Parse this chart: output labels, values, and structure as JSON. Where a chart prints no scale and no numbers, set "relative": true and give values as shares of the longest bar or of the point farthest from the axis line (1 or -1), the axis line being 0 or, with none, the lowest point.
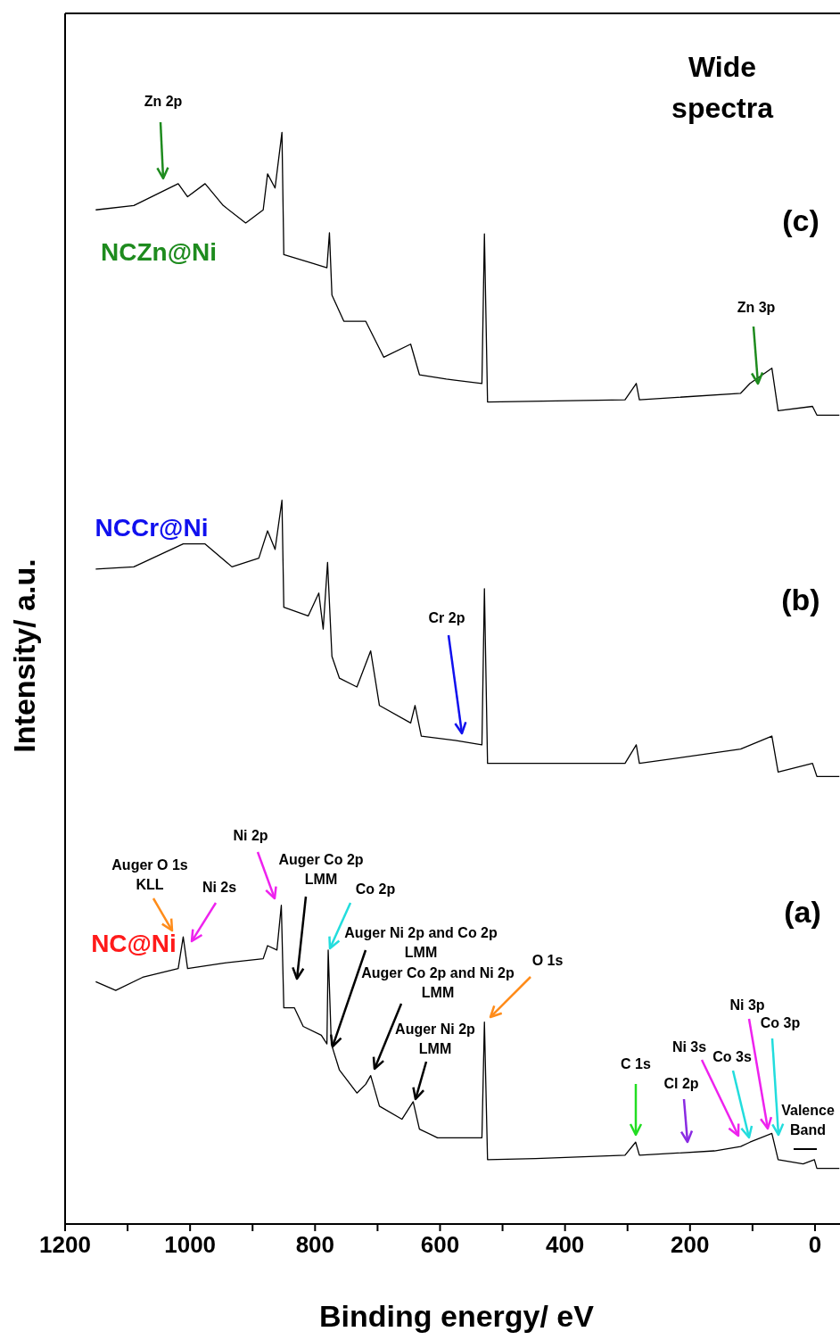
{
  "chart_data": {
    "type": "line",
    "title": "Wide spectra",
    "xlabel": "Binding energy/ eV",
    "ylabel": "Intensity/ a.u.",
    "relative": true,
    "xlim": [
      1200,
      -40
    ],
    "xticks": [
      1200,
      {
        "value": 1100,
        "label": null
      },
      1000,
      {
        "value": 900,
        "label": null
      },
      800,
      {
        "value": 700,
        "label": null
      },
      600,
      {
        "value": 500,
        "label": null
      },
      400,
      {
        "value": 300,
        "label": null
      },
      200,
      {
        "value": 100,
        "label": null
      },
      0
    ],
    "series": [
      {
        "name": "NCZn@Ni",
        "color": "#000000",
        "x": [
          1151,
          1090,
          1019,
          1004,
          976,
          947,
          911,
          883,
          876,
          864,
          853,
          850,
          804,
          781,
          777,
          773,
          754,
          719,
          690,
          647,
          633,
          590,
          533,
          529,
          524,
          304,
          286,
          281,
          119,
          104,
          69,
          59,
          4,
          -3,
          -39
        ],
        "values": [
          0.929,
          0.933,
          0.953,
          0.941,
          0.953,
          0.933,
          0.917,
          0.929,
          0.962,
          0.949,
          1.0,
          0.888,
          0.88,
          0.876,
          0.908,
          0.851,
          0.827,
          0.827,
          0.794,
          0.806,
          0.778,
          0.774,
          0.77,
          0.907,
          0.753,
          0.755,
          0.77,
          0.755,
          0.761,
          0.77,
          0.784,
          0.745,
          0.749,
          0.741,
          0.741
        ]
      },
      {
        "name": "NCCr@Ni",
        "color": "#000000",
        "x": [
          1151,
          1090,
          1011,
          976,
          933,
          890,
          876,
          864,
          853,
          850,
          811,
          794,
          787,
          780,
          773,
          761,
          733,
          711,
          697,
          647,
          640,
          630,
          576,
          533,
          529,
          524,
          304,
          286,
          281,
          119,
          69,
          59,
          4,
          -3,
          -39
        ],
        "values": [
          0.6,
          0.602,
          0.623,
          0.623,
          0.602,
          0.61,
          0.635,
          0.618,
          0.663,
          0.565,
          0.557,
          0.578,
          0.545,
          0.606,
          0.52,
          0.5,
          0.492,
          0.525,
          0.475,
          0.459,
          0.475,
          0.447,
          0.443,
          0.439,
          0.582,
          0.422,
          0.422,
          0.439,
          0.422,
          0.435,
          0.447,
          0.414,
          0.422,
          0.41,
          0.41
        ]
      },
      {
        "name": "NC@Ni",
        "color": "#000000",
        "x": [
          1151,
          1119,
          1076,
          1019,
          1011,
          1004,
          947,
          883,
          876,
          861,
          854,
          850,
          833,
          819,
          790,
          781,
          779,
          774,
          761,
          733,
          719,
          711,
          697,
          661,
          643,
          633,
          604,
          533,
          529,
          524,
          447,
          304,
          287,
          281,
          161,
          119,
          104,
          69,
          59,
          19,
          1,
          -3,
          -39
        ],
        "values": [
          0.222,
          0.214,
          0.226,
          0.234,
          0.263,
          0.234,
          0.239,
          0.243,
          0.255,
          0.251,
          0.292,
          0.198,
          0.198,
          0.181,
          0.173,
          0.165,
          0.251,
          0.165,
          0.141,
          0.12,
          0.128,
          0.136,
          0.108,
          0.096,
          0.112,
          0.087,
          0.079,
          0.079,
          0.185,
          0.059,
          0.06,
          0.063,
          0.075,
          0.063,
          0.067,
          0.071,
          0.075,
          0.083,
          0.059,
          0.055,
          0.059,
          0.051,
          0.051
        ]
      }
    ],
    "annotations": [
      "Zn 2p",
      "Zn 3p",
      "Cr 2p",
      "Auger O 1s KLL",
      "Ni 2s",
      "Ni 2p",
      "Auger Co 2p LMM",
      "Co 2p",
      "Auger Ni 2p and Co 2p LMM",
      "Auger Co 2p and Ni 2p LMM",
      "Auger Ni 2p LMM",
      "O 1s",
      "C 1s",
      "Cl 2p",
      "Ni 3s",
      "Co 3s",
      "Ni 3p",
      "Co 3p",
      "Valence Band",
      "(c)",
      "(b)",
      "(a)"
    ]
  }
}
